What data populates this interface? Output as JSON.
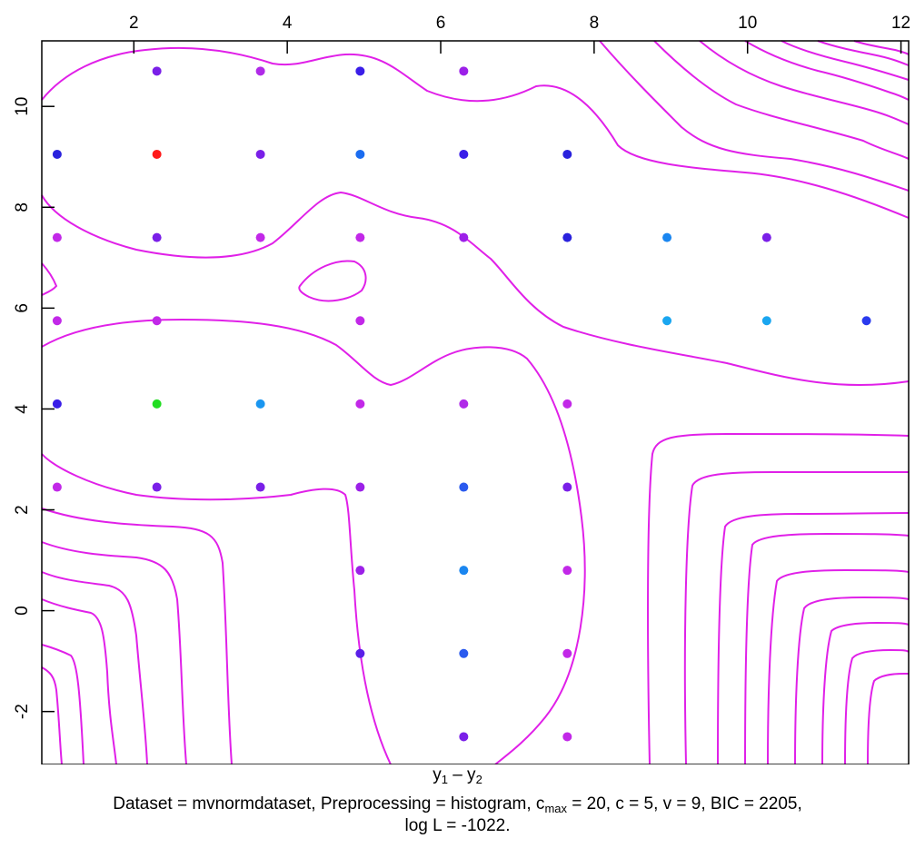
{
  "chart_data": {
    "type": "scatter",
    "title": "",
    "xlabel": {
      "base": "y",
      "sub1": "1",
      "mid": " – y",
      "sub2": "2"
    },
    "ylabel": "",
    "xlim": [
      0.8,
      12.1
    ],
    "ylim": [
      -3.05,
      11.3
    ],
    "x_ticks": [
      "2",
      "4",
      "6",
      "8",
      "10",
      "12"
    ],
    "y_ticks": [
      "-2",
      "0",
      "2",
      "4",
      "6",
      "8",
      "10"
    ],
    "x_tick_values": [
      2,
      4,
      6,
      8,
      10,
      12
    ],
    "y_tick_values": [
      -2,
      0,
      2,
      4,
      6,
      8,
      10
    ],
    "grid": false,
    "contour_color": "#e020e8",
    "points": [
      {
        "x": 2.3,
        "y": 10.7,
        "color": "#7a1fe8"
      },
      {
        "x": 3.65,
        "y": 10.7,
        "color": "#b02ae8"
      },
      {
        "x": 4.95,
        "y": 10.7,
        "color": "#3a1ee8"
      },
      {
        "x": 6.3,
        "y": 10.7,
        "color": "#9c20e8"
      },
      {
        "x": 1.0,
        "y": 9.05,
        "color": "#2a22dd"
      },
      {
        "x": 2.3,
        "y": 9.05,
        "color": "#ff1a1a"
      },
      {
        "x": 3.65,
        "y": 9.05,
        "color": "#7a1fe8"
      },
      {
        "x": 4.95,
        "y": 9.05,
        "color": "#1a6cf0"
      },
      {
        "x": 6.3,
        "y": 9.05,
        "color": "#3a1ee8"
      },
      {
        "x": 7.65,
        "y": 9.05,
        "color": "#2a22dd"
      },
      {
        "x": 1.0,
        "y": 7.4,
        "color": "#c228e8"
      },
      {
        "x": 2.3,
        "y": 7.4,
        "color": "#7a1fe8"
      },
      {
        "x": 3.65,
        "y": 7.4,
        "color": "#c228e8"
      },
      {
        "x": 4.95,
        "y": 7.4,
        "color": "#c228e8"
      },
      {
        "x": 6.3,
        "y": 7.4,
        "color": "#9c20e8"
      },
      {
        "x": 7.65,
        "y": 7.4,
        "color": "#2a22dd"
      },
      {
        "x": 8.95,
        "y": 7.4,
        "color": "#1a86f0"
      },
      {
        "x": 10.25,
        "y": 7.4,
        "color": "#7a1fe8"
      },
      {
        "x": 1.0,
        "y": 5.75,
        "color": "#c228e8"
      },
      {
        "x": 2.3,
        "y": 5.75,
        "color": "#c228e8"
      },
      {
        "x": 4.95,
        "y": 5.75,
        "color": "#c228e8"
      },
      {
        "x": 8.95,
        "y": 5.75,
        "color": "#1aa6f0"
      },
      {
        "x": 10.25,
        "y": 5.75,
        "color": "#1aa6f0"
      },
      {
        "x": 11.55,
        "y": 5.75,
        "color": "#2a3aee"
      },
      {
        "x": 1.0,
        "y": 4.1,
        "color": "#3a1ee8"
      },
      {
        "x": 2.3,
        "y": 4.1,
        "color": "#22dd22"
      },
      {
        "x": 3.65,
        "y": 4.1,
        "color": "#1a96f0"
      },
      {
        "x": 4.95,
        "y": 4.1,
        "color": "#c228e8"
      },
      {
        "x": 6.3,
        "y": 4.1,
        "color": "#b02ae8"
      },
      {
        "x": 7.65,
        "y": 4.1,
        "color": "#c228e8"
      },
      {
        "x": 1.0,
        "y": 2.45,
        "color": "#c228e8"
      },
      {
        "x": 2.3,
        "y": 2.45,
        "color": "#7a1fe8"
      },
      {
        "x": 3.65,
        "y": 2.45,
        "color": "#7a1fe8"
      },
      {
        "x": 4.95,
        "y": 2.45,
        "color": "#9c20e8"
      },
      {
        "x": 6.3,
        "y": 2.45,
        "color": "#2a5aee"
      },
      {
        "x": 7.65,
        "y": 2.45,
        "color": "#7a1fe8"
      },
      {
        "x": 4.95,
        "y": 0.8,
        "color": "#9c20e8"
      },
      {
        "x": 6.3,
        "y": 0.8,
        "color": "#1a86f0"
      },
      {
        "x": 7.65,
        "y": 0.8,
        "color": "#c228e8"
      },
      {
        "x": 4.95,
        "y": -0.85,
        "color": "#5a1fe8"
      },
      {
        "x": 6.3,
        "y": -0.85,
        "color": "#2a5aee"
      },
      {
        "x": 7.65,
        "y": -0.85,
        "color": "#c228e8"
      },
      {
        "x": 6.3,
        "y": -2.5,
        "color": "#7a1fe8"
      },
      {
        "x": 7.65,
        "y": -2.5,
        "color": "#c228e8"
      }
    ]
  },
  "caption": {
    "part1": "Dataset = mvnormdataset, Preprocessing = histogram, c",
    "cmax_sub": "max",
    "part2": " = 20, c = 5, v = 9, BIC = 2205,",
    "line2": "log L = -1022."
  }
}
